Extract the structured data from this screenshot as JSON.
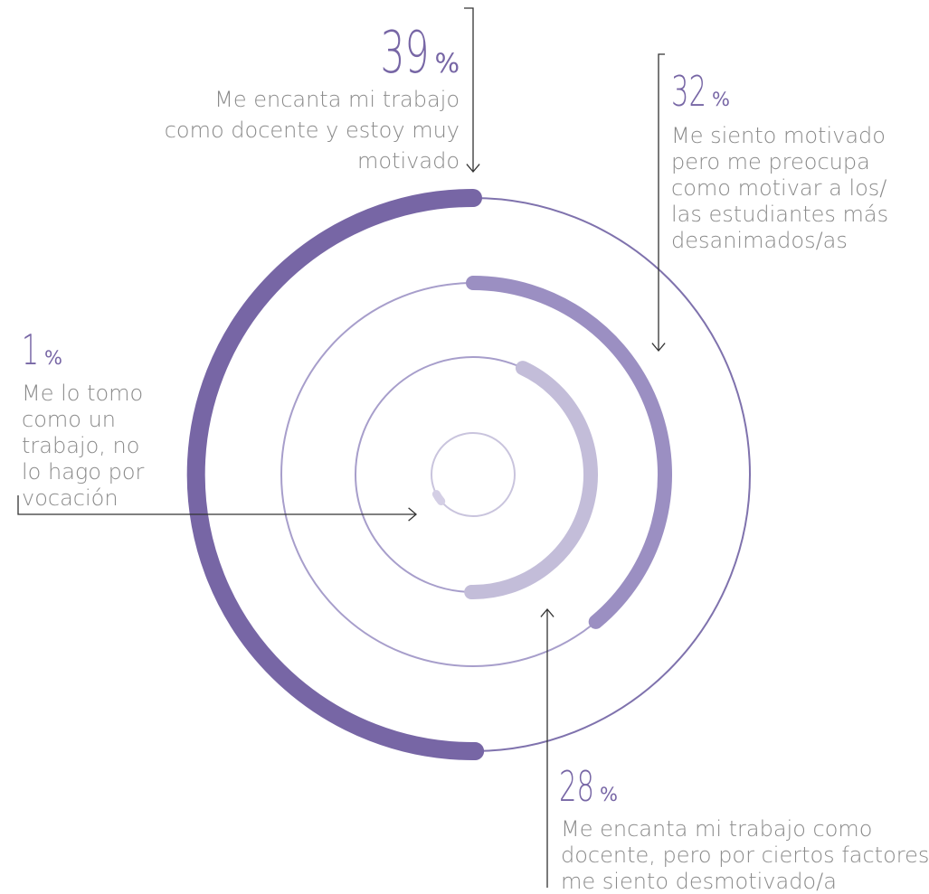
{
  "chart_data": {
    "type": "radial_bar",
    "series": [
      {
        "value": 39,
        "value_text": "39",
        "unit": "%",
        "label_lines": [
          "Me encanta mi trabajo",
          "como docente y estoy muy",
          "motivado"
        ],
        "color": "#7766a5"
      },
      {
        "value": 32,
        "value_text": "32",
        "unit": "%",
        "label_lines": [
          "Me siento motivado",
          "pero me preocupa",
          "como motivar a los/",
          "las estudiantes más",
          "desanimados/as"
        ],
        "color": "#9b8fc2"
      },
      {
        "value": 28,
        "value_text": "28",
        "unit": "%",
        "label_lines": [
          "Me encanta mi trabajo como",
          "docente, pero por ciertos factores",
          "me siento desmotivado/a"
        ],
        "color": "#c3bdd9"
      },
      {
        "value": 1,
        "value_text": "1",
        "unit": "%",
        "label_lines": [
          "Me lo tomo",
          "como un",
          "trabajo, no",
          "lo hago por",
          "vocación"
        ],
        "color": "#d4cfe5"
      }
    ],
    "colors": {
      "track": "#7f72ad",
      "text": "#8a8a8a",
      "arrow": "#333333",
      "accent": "#7766a5"
    }
  }
}
